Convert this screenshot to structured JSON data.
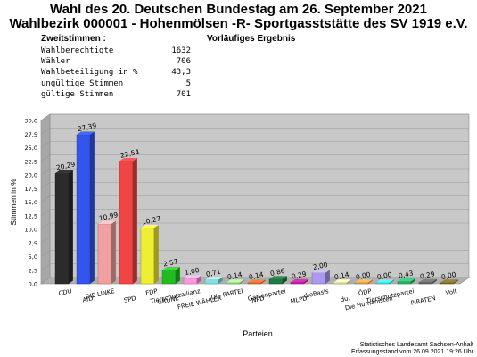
{
  "header": {
    "title_line1": "Wahl des 20. Deutschen Bundestag am 26. September 2021",
    "title_line2": "Wahlbezirk 000001 - Hohenmölsen -R- Sportgasststätte des SV 1919 e.V.",
    "section_label": "Zweitstimmen :",
    "result_status": "Vorläufiges Ergebnis"
  },
  "stats": [
    {
      "label": "Wahlberechtigte",
      "value": "1632"
    },
    {
      "label": "Wähler",
      "value": "706"
    },
    {
      "label": "Wahlbeteiligung in %",
      "value": "43,3"
    },
    {
      "label": "ungültige Stimmen",
      "value": "5"
    },
    {
      "label": "gültige Stimmen",
      "value": "701"
    }
  ],
  "chart_data": {
    "type": "bar",
    "title": "",
    "xlabel": "Parteien",
    "ylabel": "Stimmen in %",
    "ylim": [
      0,
      30
    ],
    "yticks": [
      "0,0",
      "2,5",
      "5,0",
      "7,5",
      "10,0",
      "12,5",
      "15,0",
      "17,5",
      "20,0",
      "22,5",
      "25,0",
      "27,5",
      "30,0"
    ],
    "categories": [
      "CDU",
      "AfD",
      "DIE LINKE",
      "SPD",
      "FDP",
      "GRÜNE",
      "Tierschutzallianz",
      "FREIE WÄHLER",
      "Die PARTEI",
      "NPD",
      "Gartenpartei",
      "MLPD",
      "dieBasis",
      "du.",
      "ÖDP",
      "Die Humanisten",
      "Tierschutzpartei",
      "PIRATEN",
      "Volt"
    ],
    "values": [
      20.29,
      27.39,
      10.99,
      22.54,
      10.27,
      2.57,
      1.0,
      0.71,
      0.14,
      0.14,
      0.86,
      0.29,
      2.0,
      0.14,
      0.0,
      0.0,
      0.43,
      0.29,
      0.0
    ],
    "value_labels": [
      "20,29",
      "27,39",
      "10,99",
      "22,54",
      "10,27",
      "2,57",
      "1,00",
      "0,71",
      "0,14",
      "0,14",
      "0,86",
      "0,29",
      "2,00",
      "0,14",
      "0,00",
      "0,00",
      "0,43",
      "0,29",
      "0,00"
    ],
    "colors": [
      "#2b2b2b",
      "#3355ee",
      "#f0a0a0",
      "#f04545",
      "#eeee33",
      "#22bb22",
      "#ff99dd",
      "#88dddd",
      "#99cc88",
      "#ee6633",
      "#227744",
      "#bb2299",
      "#aa99ee",
      "#dddd99",
      "#ee9944",
      "#44ddcc",
      "#33aa66",
      "#666666",
      "#7a6a2a"
    ],
    "grid": true
  },
  "footer": {
    "line1": "Statistisches Landesamt Sachsen-Anhalt",
    "line2": "Erfassungsstand vom 26.09.2021 19:26 Uhr"
  }
}
